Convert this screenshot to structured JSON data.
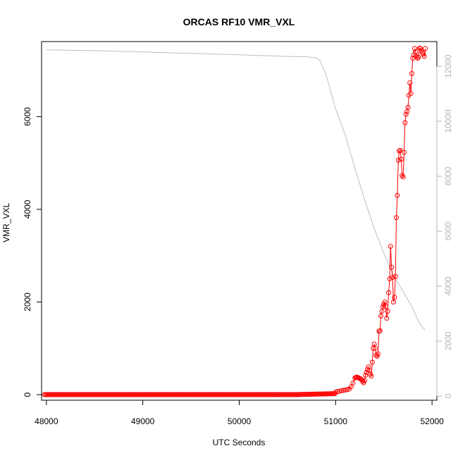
{
  "chart_data": {
    "type": "scatter",
    "title": "ORCAS RF10 VMR_VXL",
    "xlabel": "UTC Seconds",
    "ylabel": "VMR_VXL",
    "y2label": "",
    "xlim": [
      47950,
      52050
    ],
    "ylim": [
      -120,
      7620
    ],
    "y2lim": [
      -150,
      12900
    ],
    "x_ticks": [
      48000,
      49000,
      50000,
      51000,
      52000
    ],
    "y_ticks": [
      0,
      2000,
      4000,
      6000
    ],
    "y2_ticks": [
      0,
      2000,
      4000,
      6000,
      8000,
      10000,
      12000
    ],
    "grid": false,
    "legend": "none",
    "colors": {
      "series": "#ff0000",
      "secondary": "#bebebe",
      "axis": "#000000",
      "right_axis": "#b4b4b4"
    },
    "series": [
      {
        "x": [
          51000,
          51020,
          51040,
          51060,
          51080,
          51100,
          51120,
          51140,
          51160,
          51180,
          51200,
          51210,
          51220,
          51230,
          51240,
          51250,
          51260,
          51270,
          51280,
          51290,
          51300,
          51310,
          51320,
          51330,
          51340,
          51350,
          51360,
          51370,
          51380,
          51390,
          51400,
          51410,
          51420,
          51430,
          51440,
          51450,
          51460,
          51470,
          51480,
          51490,
          51500,
          51510,
          51520,
          51530,
          51540,
          51550,
          51560,
          51570,
          51580,
          51590,
          51600,
          51610,
          51620,
          51630,
          51640,
          51650,
          51660,
          51670,
          51680,
          51690,
          51700,
          51710,
          51720,
          51730,
          51740,
          51750,
          51760,
          51770,
          51780,
          51790,
          51800,
          51810,
          51820,
          51830,
          51840,
          51850,
          51860,
          51870,
          51880,
          51890,
          51900,
          51910,
          51920,
          51930
        ],
        "values": [
          55,
          65,
          75,
          85,
          95,
          100,
          110,
          120,
          170,
          250,
          360,
          370,
          380,
          370,
          360,
          350,
          340,
          320,
          290,
          260,
          300,
          420,
          480,
          540,
          600,
          520,
          440,
          400,
          700,
          1000,
          1090,
          1000,
          850,
          830,
          880,
          1370,
          1380,
          1700,
          1800,
          1900,
          1950,
          2000,
          1900,
          1650,
          1800,
          2200,
          2500,
          3200,
          2750,
          2530,
          2000,
          2100,
          2550,
          3820,
          4300,
          5060,
          5260,
          5270,
          5080,
          4730,
          4700,
          5230,
          5870,
          6050,
          6110,
          6200,
          6460,
          6730,
          6500,
          6930,
          7260,
          7330,
          7470,
          7400,
          7300,
          7260,
          7280,
          7480,
          7470,
          7420,
          7380,
          7350,
          7300,
          7470
        ]
      },
      {
        "x": [
          48000,
          48500,
          49000,
          49500,
          50000,
          50500,
          50700,
          50800,
          50840,
          50900,
          51000,
          51100,
          51200,
          51300,
          51400,
          51500,
          51600,
          51700,
          51800,
          51850,
          51900,
          51930
        ],
        "values": [
          12600,
          12570,
          12520,
          12470,
          12420,
          12360,
          12350,
          12300,
          12200,
          11700,
          10450,
          9500,
          8300,
          7150,
          6100,
          5200,
          4400,
          3800,
          3200,
          2800,
          2500,
          2400
        ]
      }
    ]
  }
}
